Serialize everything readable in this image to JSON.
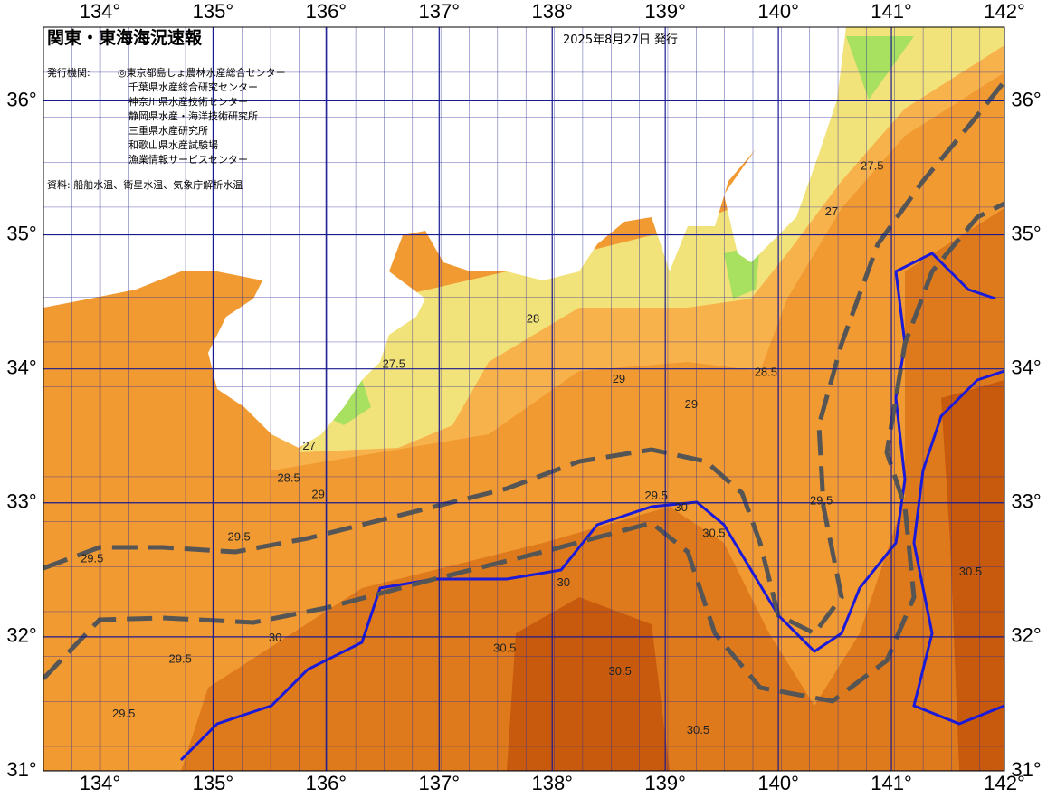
{
  "header": {
    "title": "関東・東海海況速報",
    "date": "2025年8月27日 発行",
    "agencies_label": "発行機関:",
    "agencies": [
      "◎東京都島しょ農林水産総合センター",
      "千葉県水産総合研究センター",
      "神奈川県水産技術センター",
      "静岡県水産・海洋技術研究所",
      "三重県水産研究所",
      "和歌山県水産試験場",
      "漁業情報サービスセンター"
    ],
    "source": "資料: 船舶水温、衛星水温、気象庁解析水温"
  },
  "axes": {
    "xlim": [
      133.5,
      142
    ],
    "ylim": [
      31,
      36.55
    ],
    "xticks": [
      {
        "value": 134,
        "label": "134°"
      },
      {
        "value": 135,
        "label": "135°"
      },
      {
        "value": 136,
        "label": "136°"
      },
      {
        "value": 137,
        "label": "137°"
      },
      {
        "value": 138,
        "label": "138°"
      },
      {
        "value": 139,
        "label": "139°"
      },
      {
        "value": 140,
        "label": "140°"
      },
      {
        "value": 141,
        "label": "141°"
      },
      {
        "value": 142,
        "label": "142°"
      }
    ],
    "yticks": [
      {
        "value": 31,
        "label": "31°"
      },
      {
        "value": 32,
        "label": "32°"
      },
      {
        "value": 33,
        "label": "33°"
      },
      {
        "value": 34,
        "label": "34°"
      },
      {
        "value": 35,
        "label": "35°"
      },
      {
        "value": 36,
        "label": "36°"
      }
    ]
  },
  "isotherm_labels": [
    {
      "value": 29.5,
      "lon": 133.93,
      "lat": 32.58
    },
    {
      "value": 29.5,
      "lon": 135.23,
      "lat": 32.74
    },
    {
      "value": 29.5,
      "lon": 134.71,
      "lat": 31.83
    },
    {
      "value": 29.5,
      "lon": 134.21,
      "lat": 31.42
    },
    {
      "value": 29,
      "lon": 135.93,
      "lat": 33.06
    },
    {
      "value": 28.5,
      "lon": 135.67,
      "lat": 33.18
    },
    {
      "value": 27.5,
      "lon": 136.6,
      "lat": 34.03
    },
    {
      "value": 27,
      "lon": 135.85,
      "lat": 33.42
    },
    {
      "value": 28,
      "lon": 137.83,
      "lat": 34.37
    },
    {
      "value": 29,
      "lon": 138.59,
      "lat": 33.92
    },
    {
      "value": 29,
      "lon": 139.23,
      "lat": 33.73
    },
    {
      "value": 29.5,
      "lon": 138.92,
      "lat": 33.05
    },
    {
      "value": 30,
      "lon": 139.14,
      "lat": 32.96
    },
    {
      "value": 30.5,
      "lon": 139.43,
      "lat": 32.77
    },
    {
      "value": 30,
      "lon": 138.1,
      "lat": 32.4
    },
    {
      "value": 30.5,
      "lon": 138.6,
      "lat": 31.74
    },
    {
      "value": 30.5,
      "lon": 139.29,
      "lat": 31.3
    },
    {
      "value": 29.5,
      "lon": 140.38,
      "lat": 33.01
    },
    {
      "value": 30.5,
      "lon": 141.7,
      "lat": 32.48
    },
    {
      "value": 27.5,
      "lon": 140.83,
      "lat": 35.51
    },
    {
      "value": 27,
      "lon": 140.47,
      "lat": 35.17
    },
    {
      "value": 28.5,
      "lon": 139.89,
      "lat": 33.97
    },
    {
      "value": 30,
      "lon": 135.55,
      "lat": 31.99
    },
    {
      "value": 30.5,
      "lon": 137.58,
      "lat": 31.91
    }
  ]
}
